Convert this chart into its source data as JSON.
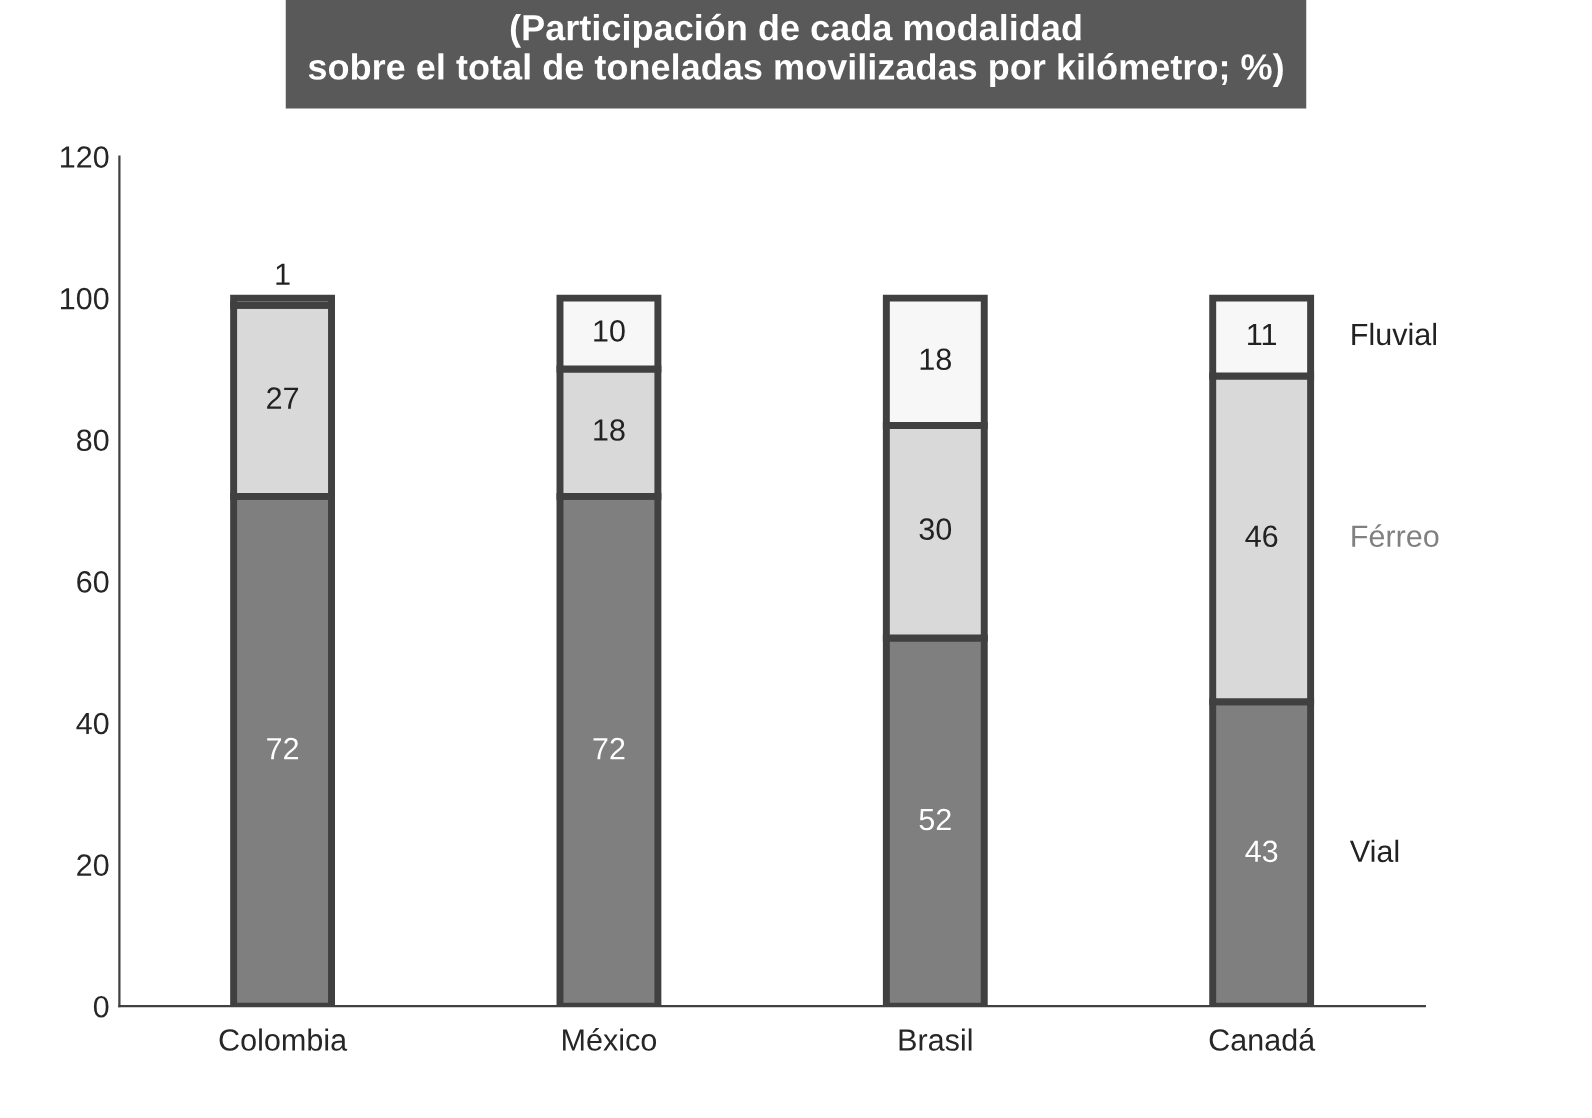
{
  "chart_data": {
    "type": "bar",
    "stacked": true,
    "title": "(Participación de cada modalidad\nsobre el total de toneladas movilizadas por kilómetro; %)",
    "categories": [
      "Colombia",
      "México",
      "Brasil",
      "Canadá"
    ],
    "series": [
      {
        "name": "Vial",
        "color": "#7f7f7f",
        "values": [
          72,
          72,
          52,
          43
        ]
      },
      {
        "name": "Férreo",
        "color": "#d9d9d9",
        "values": [
          27,
          18,
          30,
          46
        ]
      },
      {
        "name": "Fluvial",
        "color": "#f7f7f7",
        "values": [
          1,
          10,
          18,
          11
        ]
      }
    ],
    "ylim": [
      0,
      120
    ],
    "yticks": [
      0,
      20,
      40,
      60,
      80,
      100,
      120
    ],
    "grid": false,
    "legend": false,
    "data_labels": true
  }
}
